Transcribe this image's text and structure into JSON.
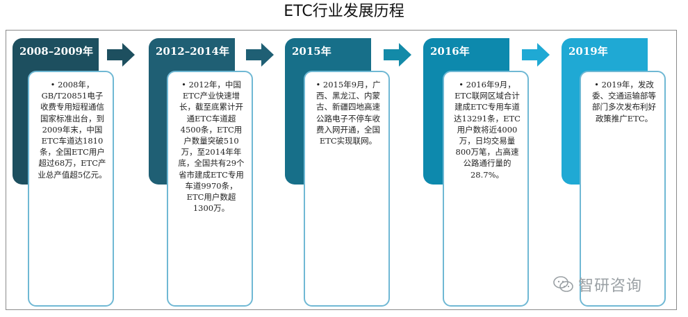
{
  "title": "ETC行业发展历程",
  "colors": {
    "stage1": "#1d4f5f",
    "stage2": "#1f5f74",
    "stage3": "#176f89",
    "stage4": "#0d89ad",
    "stage5": "#1fa9d4",
    "card_border": "#6fb8d4"
  },
  "stages": [
    {
      "label": "2008–2009年",
      "text": "• 2008年，GB/T20851电子收费专用短程通信国家标准出台，到2009年末，中国ETC车道达1810条，全国ETC用户超过68万，ETC产业总产值超5亿元。"
    },
    {
      "label": "2012–2014年",
      "text": "• 2012年，中国ETC产业快速增长，截至底累计开通ETC车道超4500条，ETC用户数量突破510万，至2014年年底，全国共有29个省市建成ETC专用车道9970条，ETC用户数超1300万。"
    },
    {
      "label": "2015年",
      "text": "•  2015年9月，广西、黑龙江、内蒙古、新疆四地高速公路电子不停车收费入网开通，全国ETC实现联网。"
    },
    {
      "label": "2016年",
      "text": "•  2016年9月，ETC联网区域合计建成ETC专用车道达13291条，ETC用户数将近4000万，日均交易量800万笔，占高速公路通行量的28.7%。"
    },
    {
      "label": "2019年",
      "text": "• 2019年，发改委、交通运输部等部门多次发布利好政策推广ETC。"
    }
  ],
  "watermark": {
    "text": "智研咨询",
    "icon": "wechat-icon"
  }
}
